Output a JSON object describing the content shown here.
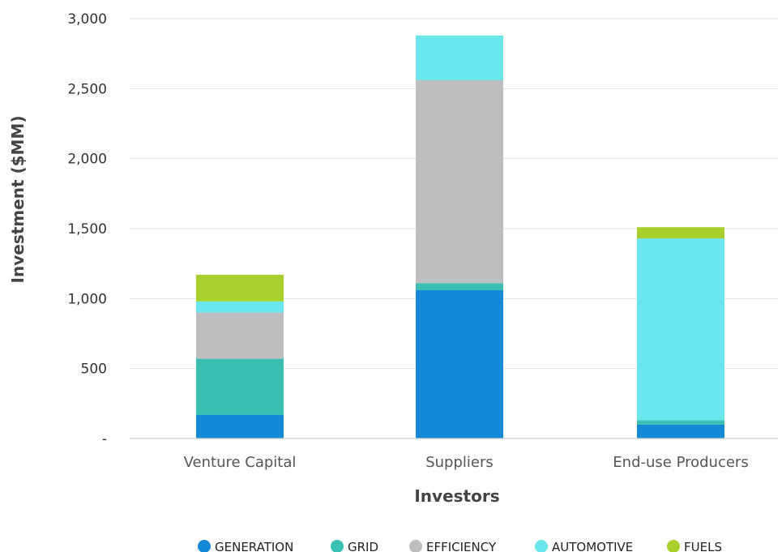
{
  "chart_data": {
    "type": "bar",
    "stacked": true,
    "title": "",
    "xlabel": "Investors",
    "ylabel": "Investment ($MM)",
    "ylim": [
      0,
      3000
    ],
    "y_ticks": [
      0,
      500,
      1000,
      1500,
      2000,
      2500,
      3000
    ],
    "y_tick_labels": [
      "-",
      "500",
      "1,000",
      "1,500",
      "2,000",
      "2,500",
      "3,000"
    ],
    "grid": true,
    "legend_position": "bottom",
    "categories": [
      "Venture Capital",
      "Suppliers",
      "End-use Producers"
    ],
    "series": [
      {
        "name": "GENERATION",
        "color": "#1589d6",
        "values": [
          170,
          1060,
          100
        ]
      },
      {
        "name": "GRID",
        "color": "#3bbfb5",
        "values": [
          400,
          50,
          30
        ]
      },
      {
        "name": "EFFICIENCY",
        "color": "#bcbec0",
        "values": [
          330,
          1450,
          0
        ]
      },
      {
        "name": "AUTOMOTIVE",
        "color": "#6be6ec",
        "values": [
          80,
          320,
          1300
        ]
      },
      {
        "name": "FUELS",
        "color": "#a8cf2b",
        "values": [
          190,
          0,
          80
        ]
      }
    ]
  }
}
